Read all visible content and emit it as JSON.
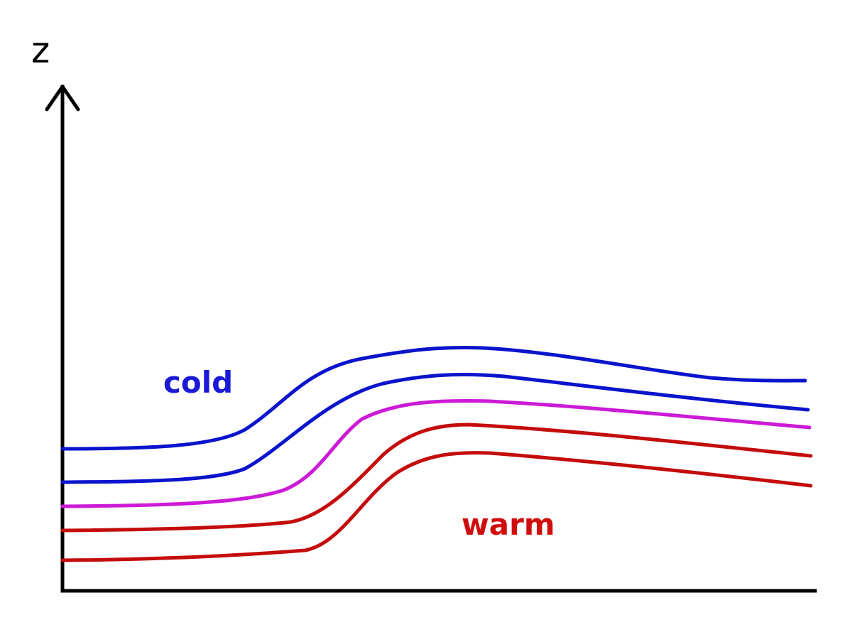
{
  "diagram": {
    "axis_label": "z",
    "labels": {
      "cold": "cold",
      "warm": "warm"
    },
    "colors": {
      "axis": "#000000",
      "contour": "#000000",
      "cold": "#0a14cc",
      "neutral": "#cc1ad6",
      "warm": "#c40c0c",
      "cold_label": "#1a1ad6",
      "warm_label": "#d00d0d"
    },
    "contour_lines": 10,
    "isentropes": [
      "cold",
      "cold",
      "neutral",
      "warm",
      "warm"
    ]
  }
}
